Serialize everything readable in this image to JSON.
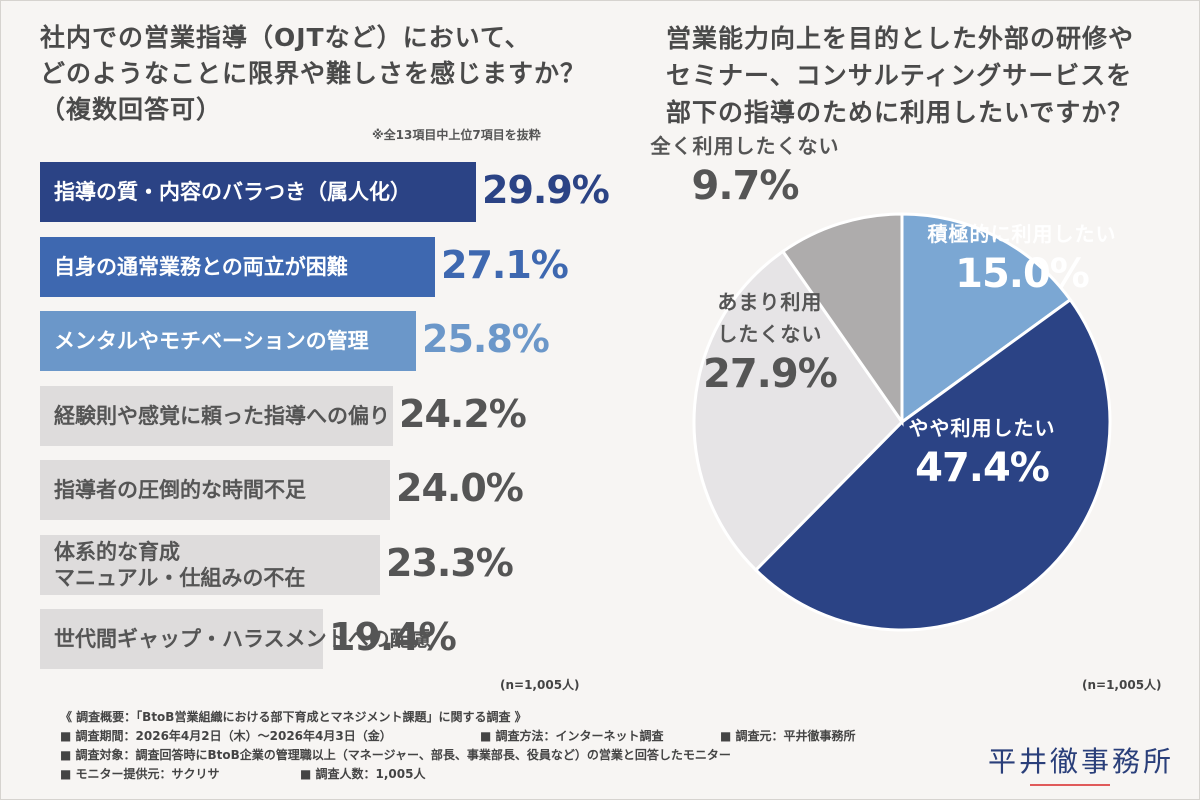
{
  "left_chart": {
    "title_lines": [
      "社内での営業指導（OJTなど）において、",
      "どのようなことに限界や難しさを感じますか？",
      "（複数回答可）"
    ],
    "note": "※全13項目中上位7項目を抜粋",
    "sample": "(n=1,005人)"
  },
  "right_chart": {
    "title_lines": [
      "営業能力向上を目的とした外部の研修や",
      "セミナー、コンサルティングサービスを",
      "部下の指導のために利用したいですか？"
    ],
    "sample": "(n=1,005人)"
  },
  "chart_data": [
    {
      "type": "bar",
      "orientation": "horizontal",
      "categories": [
        "指導の質・内容のバラつき（属人化）",
        "自身の通常業務との両立が困難",
        "メンタルやモチベーションの管理",
        "経験則や感覚に頼った指導への偏り",
        "指導者の圧倒的な時間不足",
        "体系的な育成\nマニュアル・仕組みの不在",
        "世代間ギャップ・ハラスメントへの配慮"
      ],
      "values": [
        29.9,
        27.1,
        25.8,
        24.2,
        24.0,
        23.3,
        19.4
      ],
      "value_labels": [
        "29.9%",
        "27.1%",
        "25.8%",
        "24.2%",
        "24.0%",
        "23.3%",
        "19.4%"
      ],
      "bar_colors": [
        "#2b4385",
        "#3e68b0",
        "#6b97c9",
        "#dedcdc",
        "#dedcdc",
        "#dedcdc",
        "#dedcdc"
      ],
      "label_colors": [
        "#ffffff",
        "#ffffff",
        "#ffffff",
        "#555555",
        "#555555",
        "#555555",
        "#555555"
      ],
      "value_colors": [
        "#2b4385",
        "#3e68b0",
        "#6b97c9",
        "#555555",
        "#555555",
        "#555555",
        "#555555"
      ],
      "xlim": [
        0,
        29.9
      ]
    },
    {
      "type": "pie",
      "categories": [
        "積極的に利用したい",
        "やや利用したい",
        "あまり利用\nしたくない",
        "全く利用したくない"
      ],
      "values": [
        15.0,
        47.4,
        27.9,
        9.7
      ],
      "value_labels": [
        "15.0%",
        "47.4%",
        "27.9%",
        "9.7%"
      ],
      "colors": [
        "#7ba7d3",
        "#2b4385",
        "#e6e4e6",
        "#aeacac"
      ],
      "label_colors": [
        "#ffffff",
        "#ffffff",
        "#555555",
        "#555555"
      ],
      "start": "12 o'clock",
      "direction": "clockwise"
    }
  ],
  "footer": {
    "summary": "《 調査概要：「BtoB営業組織における部下育成とマネジメント課題」に関する調査 》",
    "period": "■ 調査期間：2026年4月2日（木）〜2026年4月3日（金）",
    "method": "■ 調査方法：インターネット調査",
    "source": "■ 調査元：平井徹事務所",
    "target": "■ 調査対象：調査回答時にBtoB企業の管理職以上（マネージャー、部長、事業部長、役員など）の営業と回答したモニター",
    "provider": "■ モニター提供元：サクリサ",
    "count": "■ 調査人数：1,005人"
  },
  "logo": "平井徹事務所"
}
